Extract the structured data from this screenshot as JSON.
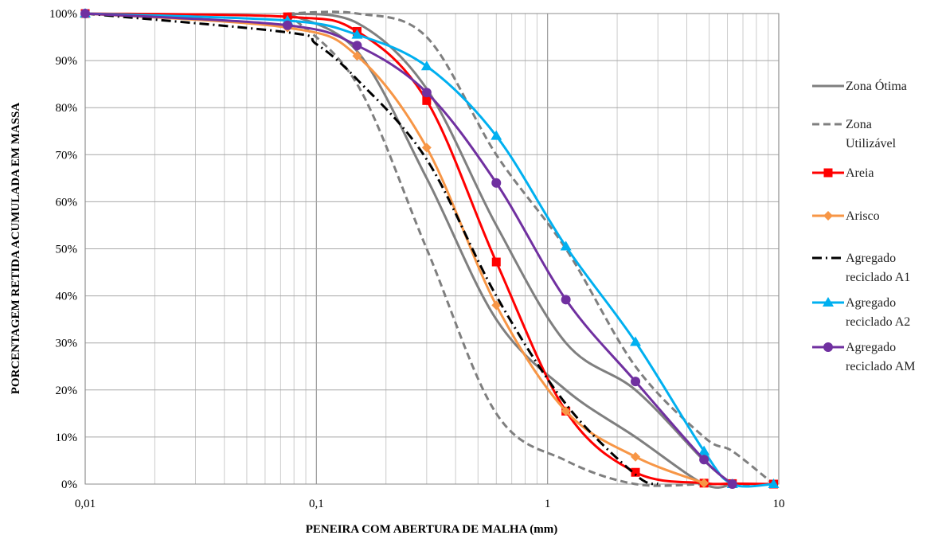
{
  "chart_data": {
    "type": "line",
    "x_scale": "log",
    "xlim": [
      0.01,
      10
    ],
    "ylim": [
      0,
      100
    ],
    "grid": true,
    "legend_position": "right",
    "xlabel": "PENEIRA COM ABERTURA DE MALHA (mm)",
    "ylabel": "PORCENTAGEM RETIDA ACUMULADA EM MASSA",
    "x_ticks": [
      {
        "value": 0.01,
        "label": "0,01"
      },
      {
        "value": 0.1,
        "label": "0,1"
      },
      {
        "value": 1,
        "label": "1"
      },
      {
        "value": 10,
        "label": "10"
      }
    ],
    "y_ticks": [
      {
        "value": 0,
        "label": "0%"
      },
      {
        "value": 10,
        "label": "10%"
      },
      {
        "value": 20,
        "label": "20%"
      },
      {
        "value": 30,
        "label": "30%"
      },
      {
        "value": 40,
        "label": "40%"
      },
      {
        "value": 50,
        "label": "50%"
      },
      {
        "value": 60,
        "label": "60%"
      },
      {
        "value": 70,
        "label": "70%"
      },
      {
        "value": 80,
        "label": "80%"
      },
      {
        "value": 90,
        "label": "90%"
      },
      {
        "value": 100,
        "label": "100%"
      }
    ],
    "series": [
      {
        "name": "Zona Ótima",
        "legend_lines": [
          "Zona Ótima"
        ],
        "color": "#7f7f7f",
        "dash": "solid",
        "marker": "none",
        "segments": [
          {
            "x": [
              0.075,
              0.15,
              0.3,
              0.6,
              1.2,
              2.4,
              4.75,
              6.3
            ],
            "y": [
              100,
              92,
              65,
              35,
              20,
              10,
              0,
              0
            ]
          },
          {
            "x": [
              0.075,
              0.15,
              0.3,
              0.6,
              1.2,
              2.4,
              4.75,
              6.3
            ],
            "y": [
              100,
              98,
              84,
              55,
              30,
              20,
              5,
              0
            ]
          }
        ]
      },
      {
        "name": "Zona Utilizável",
        "legend_lines": [
          "Zona",
          "Utilizável"
        ],
        "color": "#7f7f7f",
        "dash": "dashed",
        "marker": "none",
        "segments": [
          {
            "x": [
              0.075,
              0.15,
              0.3,
              0.6,
              1.2,
              2.4,
              4.75,
              6.3,
              9.5
            ],
            "y": [
              100,
              85,
              50,
              15,
              5,
              0,
              0,
              0,
              0
            ]
          },
          {
            "x": [
              0.075,
              0.15,
              0.3,
              0.6,
              1.2,
              2.4,
              4.75,
              6.3,
              9.5
            ],
            "y": [
              100,
              100,
              95,
              70,
              50,
              25,
              10,
              7,
              0
            ]
          }
        ]
      },
      {
        "name": "Areia",
        "legend_lines": [
          "Areia"
        ],
        "color": "#ff0000",
        "dash": "solid",
        "marker": "square",
        "x": [
          0.01,
          0.075,
          0.15,
          0.3,
          0.6,
          1.2,
          2.4,
          4.75,
          6.3,
          9.5
        ],
        "y": [
          100,
          99.3,
          96.2,
          81.5,
          47.2,
          15.5,
          2.5,
          0.2,
          0.1,
          0
        ]
      },
      {
        "name": "Arisco",
        "legend_lines": [
          "Arisco"
        ],
        "color": "#f79646",
        "dash": "solid",
        "marker": "diamond",
        "x": [
          0.01,
          0.075,
          0.15,
          0.3,
          0.6,
          1.2,
          2.4,
          4.75
        ],
        "y": [
          100,
          97,
          91,
          71.5,
          38,
          15.5,
          5.8,
          0.2
        ]
      },
      {
        "name": "Agregado reciclado A1",
        "legend_lines": [
          "Agregado",
          "reciclado A1"
        ],
        "color": "#000000",
        "dash": "dashdot",
        "marker": "none",
        "x": [
          0.01,
          0.075,
          0.1,
          0.15,
          0.3,
          0.6,
          1.2,
          2.4,
          3
        ],
        "y": [
          100,
          96,
          93.5,
          86,
          69,
          40,
          17,
          2,
          0
        ]
      },
      {
        "name": "Agregado reciclado A2",
        "legend_lines": [
          "Agregado",
          "reciclado A2"
        ],
        "color": "#00b0f0",
        "dash": "solid",
        "marker": "triangle",
        "x": [
          0.01,
          0.075,
          0.15,
          0.3,
          0.6,
          1.2,
          2.4,
          4.75,
          6.3,
          9.5
        ],
        "y": [
          100,
          98.5,
          95.5,
          88.8,
          74,
          50.5,
          30.2,
          7,
          0,
          0
        ]
      },
      {
        "name": "Agregado reciclado AM",
        "legend_lines": [
          "Agregado",
          "reciclado AM"
        ],
        "color": "#7030a0",
        "dash": "solid",
        "marker": "circle",
        "x": [
          0.01,
          0.075,
          0.15,
          0.3,
          0.6,
          1.2,
          2.4,
          4.75,
          6.3
        ],
        "y": [
          100,
          97.5,
          93.2,
          83.2,
          64,
          39.2,
          21.8,
          5.2,
          0
        ]
      }
    ]
  }
}
